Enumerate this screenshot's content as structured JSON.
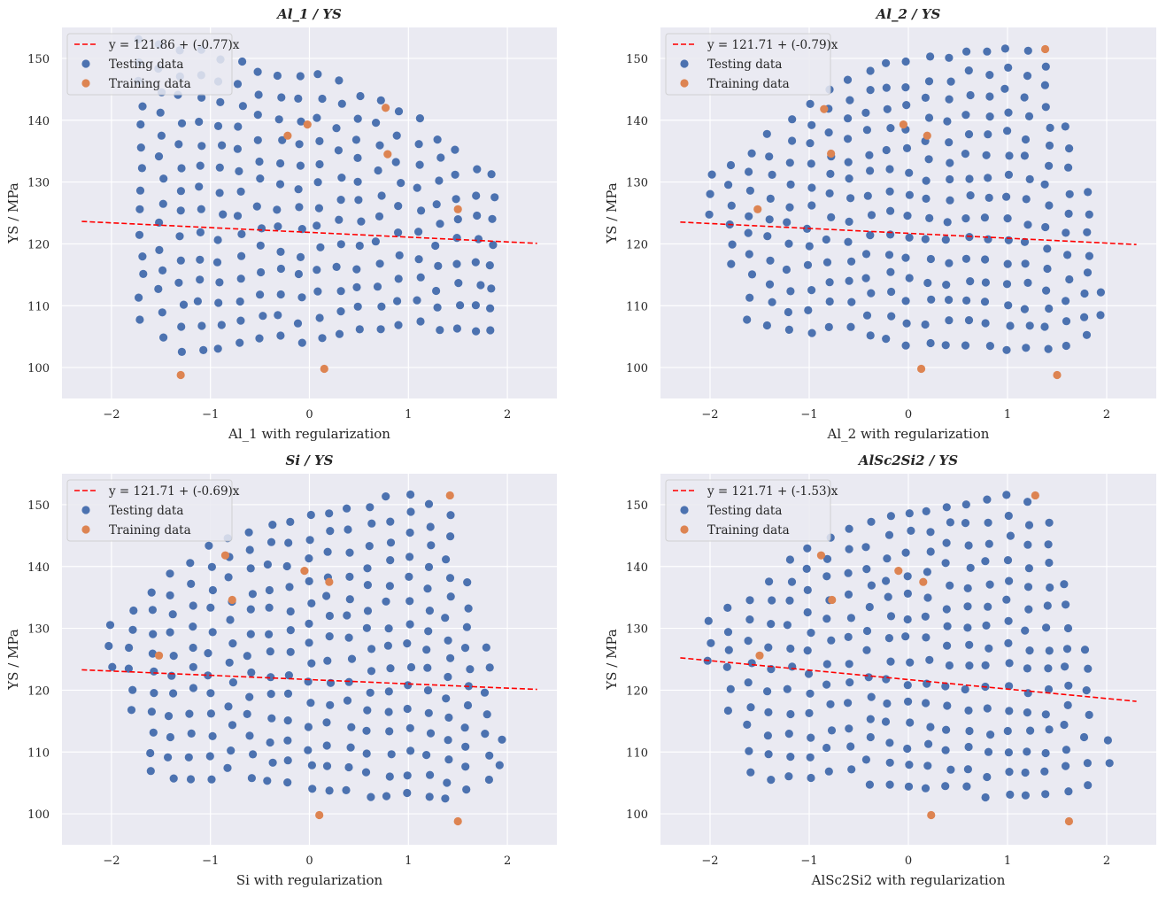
{
  "figure": {
    "colors": {
      "background": "#ffffff",
      "axes_face": "#eaeaf2",
      "grid": "#ffffff",
      "testing": "#4c72b0",
      "training": "#dd8452",
      "fit_line": "#ff0000",
      "text": "#262626"
    }
  },
  "chart_data": [
    {
      "type": "scatter",
      "title": "Al_1 / YS",
      "xlabel": "Al_1 with regularization",
      "ylabel": "YS / MPa",
      "xlim": [
        -2.5,
        2.5
      ],
      "ylim": [
        95,
        155
      ],
      "xticks": [
        -2,
        -1,
        0,
        1,
        2
      ],
      "yticks": [
        100,
        110,
        120,
        130,
        140,
        150
      ],
      "grid": true,
      "legend_position": "top-left",
      "fit_line": {
        "label": "y = 121.86 + (-0.77)x",
        "intercept": 121.86,
        "slope": -0.77,
        "x_range": [
          -2.3,
          2.3
        ]
      },
      "series": [
        {
          "name": "Testing data",
          "seed": 11,
          "columns": [
            -1.7,
            -1.5,
            -1.3,
            -1.1,
            -0.9,
            -0.7,
            -0.5,
            -0.3,
            -0.1,
            0.1,
            0.3,
            0.5,
            0.7,
            0.9,
            1.1,
            1.3,
            1.5,
            1.7,
            1.85
          ],
          "y_top": [
            153,
            152,
            151,
            151,
            150,
            149,
            148,
            147,
            147,
            147,
            146,
            144,
            143,
            141,
            140,
            137,
            135,
            132,
            131
          ],
          "y_bottom": [
            108,
            105,
            103,
            103,
            103,
            104,
            105,
            105,
            104,
            105,
            105,
            106,
            106,
            107,
            107,
            106,
            106,
            106,
            106
          ],
          "step": 3.6
        },
        {
          "name": "Training data",
          "points": [
            [
              -1.3,
              98.8
            ],
            [
              -0.22,
              137.5
            ],
            [
              -0.02,
              139.3
            ],
            [
              0.15,
              99.8
            ],
            [
              0.77,
              142.0
            ],
            [
              0.79,
              134.5
            ],
            [
              1.5,
              125.6
            ]
          ]
        }
      ]
    },
    {
      "type": "scatter",
      "title": "Al_2 / YS",
      "xlabel": "Al_2 with regularization",
      "ylabel": "YS / MPa",
      "xlim": [
        -2.5,
        2.5
      ],
      "ylim": [
        95,
        155
      ],
      "xticks": [
        -2,
        -1,
        0,
        1,
        2
      ],
      "yticks": [
        100,
        110,
        120,
        130,
        140,
        150
      ],
      "grid": true,
      "legend_position": "top-left",
      "fit_line": {
        "label": "y = 121.71 + (-0.79)x",
        "intercept": 121.71,
        "slope": -0.79,
        "x_range": [
          -2.3,
          2.3
        ]
      },
      "series": [
        {
          "name": "Testing data",
          "seed": 23,
          "columns": [
            -2.0,
            -1.8,
            -1.6,
            -1.4,
            -1.2,
            -1.0,
            -0.8,
            -0.6,
            -0.4,
            -0.2,
            0.0,
            0.2,
            0.4,
            0.6,
            0.8,
            1.0,
            1.2,
            1.4,
            1.6,
            1.8,
            1.95
          ],
          "y_top": [
            131,
            133,
            135,
            138,
            140,
            143,
            145,
            147,
            148,
            149,
            149,
            150,
            150,
            151,
            151,
            152,
            151,
            149,
            139,
            128,
            112
          ],
          "y_bottom": [
            125,
            117,
            108,
            107,
            106,
            106,
            107,
            107,
            105,
            105,
            104,
            104,
            104,
            104,
            104,
            103,
            103,
            103,
            104,
            105,
            108
          ],
          "step": 3.4
        },
        {
          "name": "Training data",
          "points": [
            [
              -1.52,
              125.6
            ],
            [
              -0.85,
              141.8
            ],
            [
              -0.78,
              134.6
            ],
            [
              -0.05,
              139.3
            ],
            [
              0.13,
              99.8
            ],
            [
              0.19,
              137.5
            ],
            [
              1.38,
              151.5
            ],
            [
              1.5,
              98.8
            ]
          ]
        }
      ]
    },
    {
      "type": "scatter",
      "title": "Si / YS",
      "xlabel": "Si with regularization",
      "ylabel": "YS / MPa",
      "xlim": [
        -2.5,
        2.5
      ],
      "ylim": [
        95,
        155
      ],
      "xticks": [
        -2,
        -1,
        0,
        1,
        2
      ],
      "yticks": [
        100,
        110,
        120,
        130,
        140,
        150
      ],
      "grid": true,
      "legend_position": "top-left",
      "fit_line": {
        "label": "y = 121.71 + (-0.69)x",
        "intercept": 121.71,
        "slope": -0.69,
        "x_range": [
          -2.3,
          2.3
        ]
      },
      "series": [
        {
          "name": "Testing data",
          "seed": 37,
          "columns": [
            -2.0,
            -1.8,
            -1.6,
            -1.4,
            -1.2,
            -1.0,
            -0.8,
            -0.6,
            -0.4,
            -0.2,
            0.0,
            0.2,
            0.4,
            0.6,
            0.8,
            1.0,
            1.2,
            1.4,
            1.6,
            1.8,
            1.92
          ],
          "y_top": [
            131,
            133,
            136,
            139,
            141,
            143,
            145,
            146,
            147,
            147,
            148,
            149,
            149,
            150,
            151,
            152,
            150,
            148,
            137,
            127,
            112
          ],
          "y_bottom": [
            124,
            117,
            107,
            106,
            106,
            106,
            107,
            106,
            105,
            105,
            104,
            104,
            104,
            103,
            103,
            103,
            103,
            102,
            104,
            106,
            108
          ],
          "step": 3.4
        },
        {
          "name": "Training data",
          "points": [
            [
              -1.52,
              125.6
            ],
            [
              -0.85,
              141.8
            ],
            [
              -0.78,
              134.6
            ],
            [
              -0.05,
              139.3
            ],
            [
              0.1,
              99.8
            ],
            [
              0.2,
              137.5
            ],
            [
              1.42,
              151.5
            ],
            [
              1.5,
              98.8
            ]
          ]
        }
      ]
    },
    {
      "type": "scatter",
      "title": "AlSc2Si2 / YS",
      "xlabel": "AlSc2Si2 with regularization",
      "ylabel": "YS / MPa",
      "xlim": [
        -2.5,
        2.5
      ],
      "ylim": [
        95,
        155
      ],
      "xticks": [
        -2,
        -1,
        0,
        1,
        2
      ],
      "yticks": [
        100,
        110,
        120,
        130,
        140,
        150
      ],
      "grid": true,
      "legend_position": "top-left",
      "fit_line": {
        "label": "y = 121.71 + (-1.53)x",
        "intercept": 121.71,
        "slope": -1.53,
        "x_range": [
          -2.3,
          2.3
        ]
      },
      "series": [
        {
          "name": "Testing data",
          "seed": 53,
          "columns": [
            -2.0,
            -1.8,
            -1.6,
            -1.4,
            -1.2,
            -1.0,
            -0.8,
            -0.6,
            -0.4,
            -0.2,
            0.0,
            0.2,
            0.4,
            0.6,
            0.8,
            1.0,
            1.2,
            1.4,
            1.6,
            1.8,
            2.0
          ],
          "y_top": [
            131,
            133,
            135,
            138,
            141,
            143,
            145,
            146,
            147,
            148,
            149,
            149,
            150,
            150,
            151,
            152,
            150,
            147,
            137,
            127,
            112
          ],
          "y_bottom": [
            125,
            117,
            107,
            106,
            106,
            106,
            107,
            107,
            105,
            105,
            104,
            104,
            104,
            104,
            103,
            103,
            103,
            103,
            104,
            105,
            108
          ],
          "step": 3.4
        },
        {
          "name": "Training data",
          "points": [
            [
              -1.5,
              125.6
            ],
            [
              -0.88,
              141.8
            ],
            [
              -0.77,
              134.6
            ],
            [
              -0.1,
              139.3
            ],
            [
              0.15,
              137.5
            ],
            [
              0.23,
              99.8
            ],
            [
              1.28,
              151.5
            ],
            [
              1.62,
              98.8
            ]
          ]
        }
      ]
    }
  ]
}
